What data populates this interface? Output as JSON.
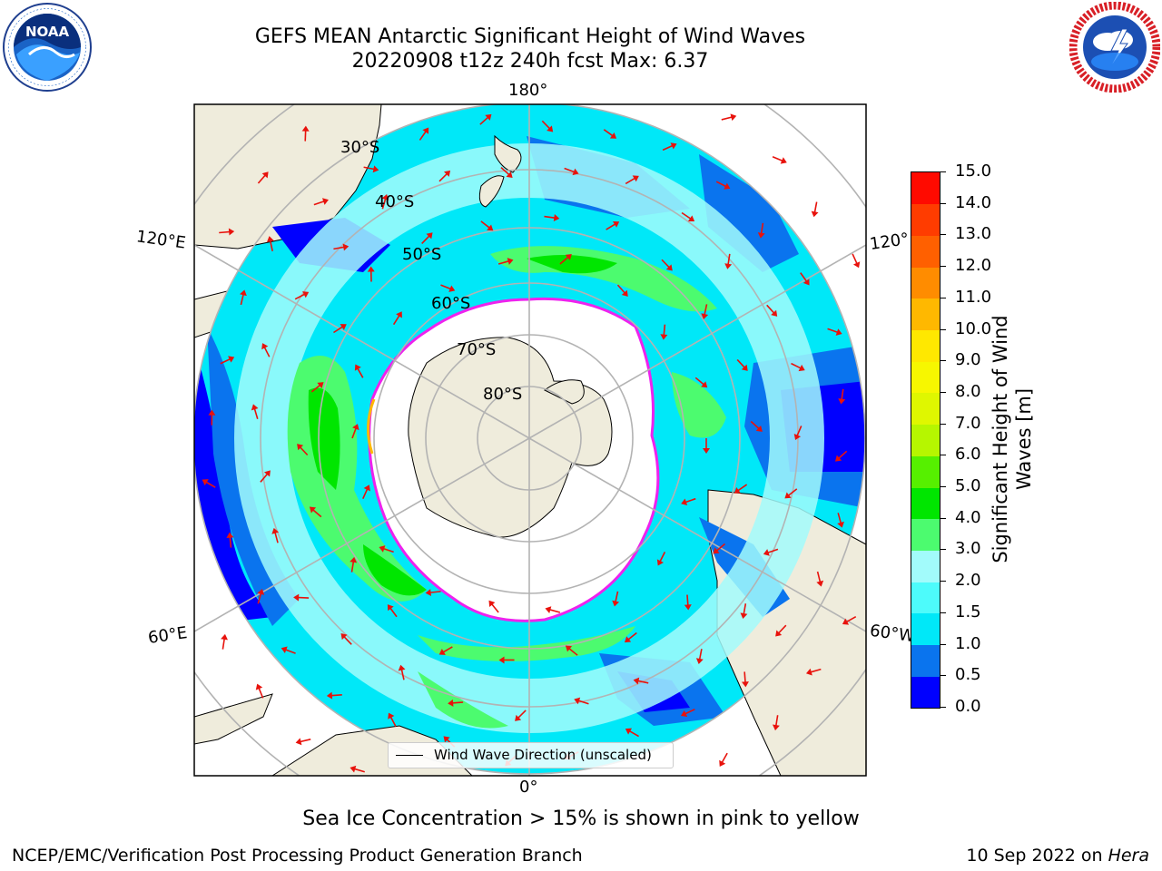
{
  "header": {
    "title_line1": "GEFS MEAN Antarctic Significant Height of Wind Waves",
    "title_line2": "20220908 t12z 240h fcst   Max: 6.37"
  },
  "logos": {
    "left": {
      "icon": "noaa-logo-icon",
      "text": "NOAA",
      "ring_text": "NATIONAL OCEANIC AND ATMOSPHERIC ADMINISTRATION · U.S. DEPARTMENT OF COMMERCE"
    },
    "right": {
      "icon": "national-weather-service-logo-icon",
      "ring_text": "NATIONAL WEATHER SERVICE"
    }
  },
  "map": {
    "projection": "south-polar-stereographic",
    "longitude_labels": {
      "top": "180°",
      "bottom": "0°",
      "upper_left": "120°E",
      "upper_right": "120°",
      "lower_left": "60°E",
      "lower_right": "60°W"
    },
    "latitude_labels": [
      "30°S",
      "40°S",
      "50°S",
      "60°S",
      "70°S",
      "80°S"
    ],
    "legend_label": "Wind Wave Direction (unscaled)",
    "colors": {
      "land": "#efecdc",
      "ice_shelf": "#ffffff",
      "gridline": "#b3b3b3",
      "arrow": "#e8120c",
      "sea_ice_edge": "#ee22ee"
    }
  },
  "colorbar": {
    "label_line1": "Significant Height of Wind",
    "label_line2": "Waves [m]",
    "ticks": [
      "0.0",
      "0.5",
      "1.0",
      "1.5",
      "2.0",
      "3.0",
      "4.0",
      "5.0",
      "6.0",
      "7.0",
      "8.0",
      "9.0",
      "10.0",
      "11.0",
      "12.0",
      "13.0",
      "14.0",
      "15.0"
    ],
    "colors": [
      "#0000ff",
      "#0a74ee",
      "#00e8f8",
      "#4dfbfb",
      "#a2fbfb",
      "#4cfb6f",
      "#00e600",
      "#56f000",
      "#b6f600",
      "#dff700",
      "#f7f700",
      "#ffe800",
      "#ffb800",
      "#ff8c00",
      "#ff6000",
      "#ff3c00",
      "#ff0a00"
    ]
  },
  "caption": "Sea Ice Concentration > 15% is shown in pink to yellow",
  "footer": {
    "left": "NCEP/EMC/Verification Post Processing Product Generation Branch",
    "right_date": "10 Sep 2022 on ",
    "right_host": "Hera"
  }
}
